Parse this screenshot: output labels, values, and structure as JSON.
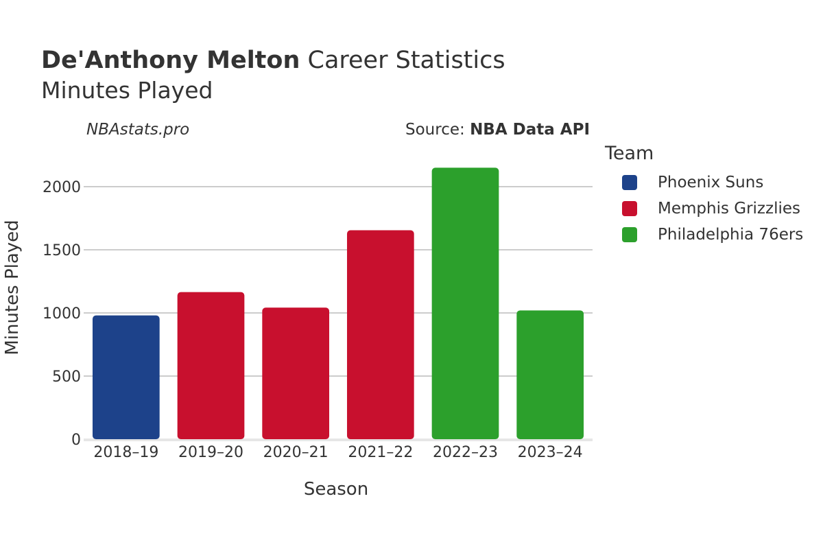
{
  "header": {
    "title_bold": "De'Anthony Melton",
    "title_rest": " Career Statistics",
    "subtitle": "Minutes Played",
    "watermark": "NBAstats.pro",
    "source_prefix": "Source: ",
    "source_name": "NBA Data API"
  },
  "legend": {
    "title": "Team",
    "items": [
      {
        "label": "Phoenix Suns",
        "color": "#1d428a"
      },
      {
        "label": "Memphis Grizzlies",
        "color": "#c8102e"
      },
      {
        "label": "Philadelphia 76ers",
        "color": "#2ca02c"
      }
    ]
  },
  "chart_data": {
    "type": "bar",
    "title": "De'Anthony Melton Career Statistics",
    "subtitle": "Minutes Played",
    "xlabel": "Season",
    "ylabel": "Minutes Played",
    "ylim": [
      0,
      2250
    ],
    "yticks": [
      0,
      500,
      1000,
      1500,
      2000
    ],
    "grid": true,
    "legend_position": "right",
    "categories": [
      "2018–19",
      "2019–20",
      "2020–21",
      "2021–22",
      "2022–23",
      "2023–24"
    ],
    "values": [
      980,
      1165,
      1042,
      1655,
      2150,
      1020
    ],
    "teams": [
      "Phoenix Suns",
      "Memphis Grizzlies",
      "Memphis Grizzlies",
      "Memphis Grizzlies",
      "Philadelphia 76ers",
      "Philadelphia 76ers"
    ],
    "team_colors": {
      "Phoenix Suns": "#1d428a",
      "Memphis Grizzlies": "#c8102e",
      "Philadelphia 76ers": "#2ca02c"
    }
  }
}
